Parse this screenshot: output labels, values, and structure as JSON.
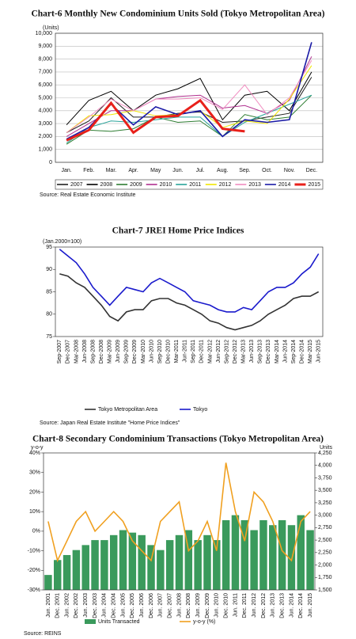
{
  "chart_data": [
    {
      "type": "line",
      "title": "Chart-6 Monthly New Condominium Units Sold (Tokyo Metropolitan Area)",
      "y_label": "(Units)",
      "categories": [
        "Jan.",
        "Feb.",
        "Mar.",
        "Apr.",
        "May",
        "Jun.",
        "Jul.",
        "Aug.",
        "Sep.",
        "Oct.",
        "Nov.",
        "Dec."
      ],
      "ylim": [
        0,
        10000
      ],
      "yticks": [
        0,
        {
          "value": 1000,
          "label": "1,000"
        },
        {
          "value": 2000,
          "label": "2,000"
        },
        {
          "value": 3000,
          "label": "3,000"
        },
        {
          "value": 4000,
          "label": "4,000"
        },
        {
          "value": 5000,
          "label": "5,000"
        },
        {
          "value": 6000,
          "label": "6,000"
        },
        {
          "value": 7000,
          "label": "7,000"
        },
        {
          "value": 8000,
          "label": "8,000"
        },
        {
          "value": 9000,
          "label": "9,000"
        },
        {
          "value": 10000,
          "label": "10,000"
        }
      ],
      "grid": true,
      "series": [
        {
          "name": "2007",
          "color": "#222222",
          "values": [
            2300,
            3200,
            5000,
            3500,
            3500,
            3800,
            3900,
            3100,
            3200,
            3500,
            3800,
            6600
          ]
        },
        {
          "name": "2008",
          "color": "#000000",
          "values": [
            2900,
            4800,
            5500,
            4000,
            5200,
            5700,
            6500,
            3300,
            5200,
            5500,
            4000,
            7000
          ]
        },
        {
          "name": "2009",
          "color": "#2e7d32",
          "values": [
            1400,
            2500,
            2400,
            2600,
            3500,
            3100,
            3200,
            2000,
            3700,
            3300,
            3500,
            5200
          ]
        },
        {
          "name": "2010",
          "color": "#b0308f",
          "values": [
            2000,
            3000,
            4000,
            4000,
            4900,
            5100,
            5200,
            4200,
            4400,
            3800,
            4800,
            8200
          ]
        },
        {
          "name": "2011",
          "color": "#2aa39a",
          "values": [
            1500,
            2700,
            3200,
            3100,
            3300,
            3500,
            3500,
            2000,
            3100,
            3800,
            4500,
            5200
          ]
        },
        {
          "name": "2012",
          "color": "#f2e600",
          "values": [
            2300,
            3600,
            3700,
            4000,
            3600,
            3700,
            4000,
            2700,
            3200,
            3000,
            4900,
            7500
          ]
        },
        {
          "name": "2013",
          "color": "#f08cc0",
          "values": [
            2300,
            3500,
            4900,
            4000,
            4900,
            4900,
            5000,
            4100,
            6000,
            3700,
            5000,
            7900
          ]
        },
        {
          "name": "2014",
          "color": "#1a1aa6",
          "values": [
            1800,
            2700,
            4500,
            2900,
            4300,
            3700,
            4000,
            2000,
            3300,
            3100,
            3300,
            9300
          ]
        },
        {
          "name": "2015",
          "color": "#e8201a",
          "values": [
            1700,
            2500,
            4600,
            2300,
            3500,
            3600,
            4800,
            2600,
            2400,
            null,
            null,
            null
          ]
        }
      ],
      "source": "Source: Real Estate Economic Institute"
    },
    {
      "type": "line",
      "title": "Chart-7 JREI Home Price Indices",
      "y_label": "(Jan.2000=100)",
      "categories": [
        "Sep-2007",
        "Dec-2007",
        "Mar-2008",
        "Jun-2008",
        "Sep-2008",
        "Dec-2008",
        "Mar-2009",
        "Jun-2009",
        "Sep-2009",
        "Dec-2009",
        "Mar-2010",
        "Jun-2010",
        "Sep-2010",
        "Dec-2010",
        "Mar-2011",
        "Jun-2011",
        "Sep-2011",
        "Dec-2011",
        "Mar-2012",
        "Jun-2012",
        "Sep-2012",
        "Dec-2012",
        "Mar-2013",
        "Jun-2013",
        "Sep-2013",
        "Dec-2013",
        "Mar-2014",
        "Jun-2014",
        "Sep-2014",
        "Dec-2014",
        "Mar-2015",
        "Jun-2015"
      ],
      "ylim": [
        75,
        95
      ],
      "yticks": [
        75,
        80,
        85,
        90,
        95
      ],
      "grid": false,
      "series": [
        {
          "name": "Tokyo Metropolitan Area",
          "color": "#333333",
          "values": [
            89,
            88.5,
            87,
            86,
            84,
            82,
            79.5,
            78.5,
            80.5,
            81,
            81,
            83,
            83.5,
            83.5,
            82.5,
            82,
            81,
            80,
            78.5,
            78,
            77,
            76.5,
            77,
            77.5,
            78.5,
            80,
            81,
            82,
            83.5,
            84,
            84,
            85
          ]
        },
        {
          "name": "Tokyo",
          "color": "#1a1acc",
          "values": [
            94.5,
            93,
            91.5,
            89,
            86,
            84,
            82,
            84,
            86,
            85.5,
            85,
            87,
            88,
            87,
            86,
            85,
            83,
            82.5,
            82,
            81,
            80.5,
            80.5,
            81.5,
            81,
            83,
            85,
            86,
            86,
            87,
            89,
            90.5,
            93.5
          ]
        }
      ],
      "source": "Source: Japan Real Estate Institute \"Home Price Indices\""
    },
    {
      "type": "bar",
      "title": "Chart-8 Secondary Condominium Transactions (Tokyo Metropolitan Area)",
      "y_label": "y-o-y",
      "y2_label": "Units",
      "categories": [
        "Jun. 2001",
        "Dec. 2001",
        "Jun. 2002",
        "Dec. 2002",
        "Jun. 2003",
        "Dec. 2003",
        "Jun. 2004",
        "Dec. 2004",
        "Jun. 2005",
        "Dec. 2005",
        "Jun. 2006",
        "Dec. 2006",
        "Jun. 2007",
        "Dec. 2007",
        "Jun. 2008",
        "Dec. 2008",
        "Jun. 2009",
        "Dec. 2009",
        "Jun. 2010",
        "Dec. 2010",
        "Jun. 2011",
        "Dec. 2011",
        "Jun. 2012",
        "Dec. 2012",
        "Jun. 2013",
        "Dec. 2013",
        "Jun. 2014",
        "Dec. 2014",
        "Jun. 2015"
      ],
      "ylim": [
        -30,
        40
      ],
      "yticks": [
        {
          "value": -30,
          "label": "-30%"
        },
        {
          "value": -20,
          "label": "-20%"
        },
        {
          "value": -10,
          "label": "-10%"
        },
        {
          "value": 0,
          "label": "0%"
        },
        {
          "value": 10,
          "label": "10%"
        },
        {
          "value": 20,
          "label": "20%"
        },
        {
          "value": 30,
          "label": "30%"
        },
        {
          "value": 40,
          "label": "40%"
        }
      ],
      "y2lim": [
        1500,
        4250
      ],
      "y2ticks": [
        {
          "value": 1500,
          "label": "1,500"
        },
        {
          "value": 1750,
          "label": "1,750"
        },
        {
          "value": 2000,
          "label": "2,000"
        },
        {
          "value": 2250,
          "label": "2,250"
        },
        {
          "value": 2500,
          "label": "2,500"
        },
        {
          "value": 2750,
          "label": "2,750"
        },
        {
          "value": 3000,
          "label": "3,000"
        },
        {
          "value": 3250,
          "label": "3,250"
        },
        {
          "value": 3500,
          "label": "3,500"
        },
        {
          "value": 3750,
          "label": "3,750"
        },
        {
          "value": 4000,
          "label": "4,000"
        },
        {
          "value": 4250,
          "label": "4,250"
        }
      ],
      "grid": false,
      "series": [
        {
          "name": "Units Transacted",
          "type": "bar",
          "axis": "y2",
          "color": "#3a9a5c",
          "values": [
            1800,
            2100,
            2200,
            2300,
            2400,
            2500,
            2500,
            2600,
            2700,
            2650,
            2600,
            2400,
            2300,
            2500,
            2600,
            2700,
            2500,
            2600,
            2500,
            2900,
            3000,
            2900,
            2700,
            2900,
            2800,
            2900,
            2800,
            3000,
            2700
          ]
        },
        {
          "name": "y-o-y (%)",
          "type": "line",
          "color": "#f0a020",
          "values": [
            5,
            -15,
            -5,
            5,
            10,
            0,
            5,
            10,
            5,
            -5,
            -10,
            -15,
            5,
            10,
            15,
            -10,
            -5,
            5,
            -10,
            35,
            10,
            -5,
            20,
            15,
            5,
            -10,
            -15,
            5,
            10
          ]
        }
      ],
      "source": "Source: REINS"
    }
  ]
}
